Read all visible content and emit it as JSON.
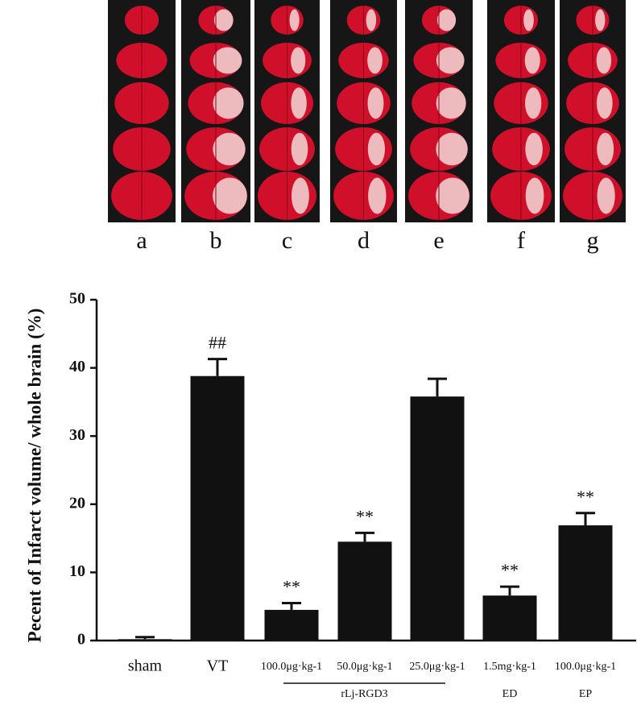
{
  "panels": [
    "a",
    "b",
    "c",
    "d",
    "e",
    "f",
    "g"
  ],
  "chart_data": {
    "type": "bar",
    "y_label": "Pecent of Infarct volume/ whole brain (%)",
    "categories": [
      "sham",
      "VT",
      "100.0μg·kg-1",
      "50.0μg·kg-1",
      "25.0μg·kg-1",
      "1.5mg·kg-1",
      "100.0μg·kg-1"
    ],
    "series": [
      {
        "color": "#111111",
        "values": [
          0.2,
          38.8,
          4.5,
          14.5,
          35.8,
          6.6,
          16.9
        ],
        "errors": [
          0.3,
          2.5,
          1.0,
          1.3,
          2.6,
          1.3,
          1.8
        ],
        "annotations": [
          null,
          "##",
          "**",
          "**",
          null,
          "**",
          "**"
        ]
      }
    ],
    "groups": [
      {
        "label": "rLj-RGD3",
        "from": 2,
        "to": 4
      },
      {
        "label": "ED",
        "from": 5,
        "to": 5
      },
      {
        "label": "EP",
        "from": 6,
        "to": 6
      }
    ],
    "ylim": [
      0,
      50
    ],
    "yticks": [
      0,
      10,
      20,
      30,
      40,
      50
    ]
  }
}
